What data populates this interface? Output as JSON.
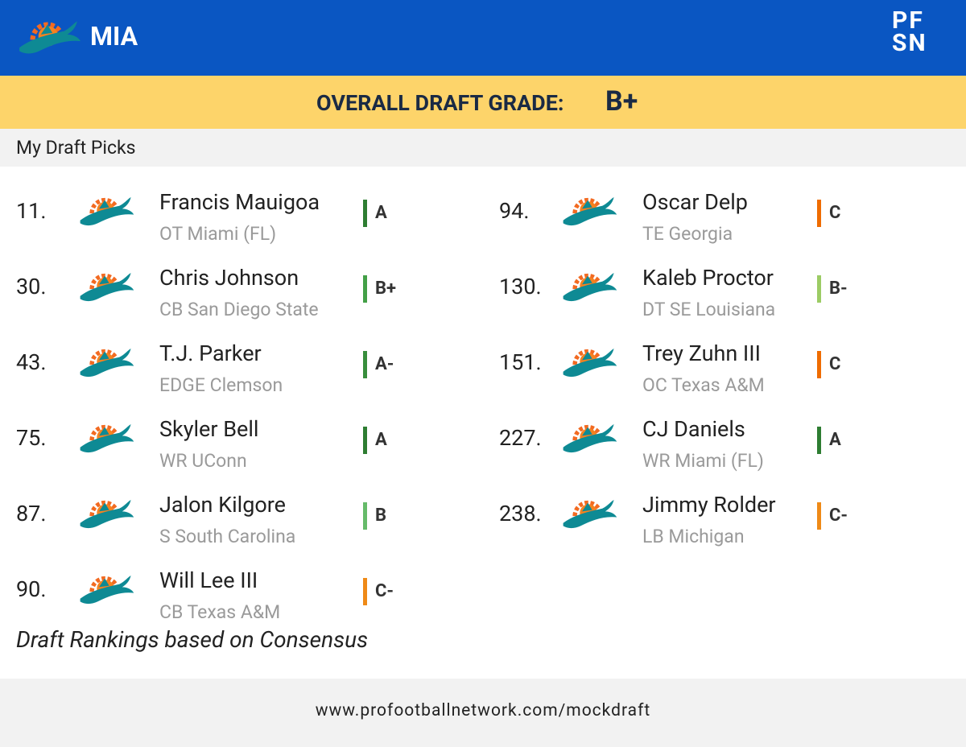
{
  "header": {
    "team": "MIA",
    "logo": [
      "PF",
      "SN"
    ]
  },
  "grade_banner": {
    "label": "OVERALL DRAFT GRADE:",
    "grade": "B+"
  },
  "section_title": "My Draft Picks",
  "picks": [
    {
      "pick": "11.",
      "name": "Francis Mauigoa",
      "position_school": "OT Miami (FL)",
      "grade": "A",
      "grade_color": "#2e7d32"
    },
    {
      "pick": "30.",
      "name": "Chris Johnson",
      "position_school": "CB San Diego State",
      "grade": "B+",
      "grade_color": "#43a047"
    },
    {
      "pick": "43.",
      "name": "T.J. Parker",
      "position_school": "EDGE Clemson",
      "grade": "A-",
      "grade_color": "#388e3c"
    },
    {
      "pick": "75.",
      "name": "Skyler Bell",
      "position_school": "WR UConn",
      "grade": "A",
      "grade_color": "#2e7d32"
    },
    {
      "pick": "87.",
      "name": "Jalon Kilgore",
      "position_school": "S South Carolina",
      "grade": "B",
      "grade_color": "#66bb6a"
    },
    {
      "pick": "90.",
      "name": "Will Lee III",
      "position_school": "CB Texas A&M",
      "grade": "C-",
      "grade_color": "#ef8a17"
    },
    {
      "pick": "94.",
      "name": "Oscar Delp",
      "position_school": "TE Georgia",
      "grade": "C",
      "grade_color": "#ef6c00"
    },
    {
      "pick": "130.",
      "name": "Kaleb Proctor",
      "position_school": "DT SE Louisiana",
      "grade": "B-",
      "grade_color": "#9ccc65"
    },
    {
      "pick": "151.",
      "name": "Trey Zuhn III",
      "position_school": "OC Texas A&M",
      "grade": "C",
      "grade_color": "#ef6c00"
    },
    {
      "pick": "227.",
      "name": "CJ Daniels",
      "position_school": "WR Miami (FL)",
      "grade": "A",
      "grade_color": "#2e7d32"
    },
    {
      "pick": "238.",
      "name": "Jimmy Rolder",
      "position_school": "LB Michigan",
      "grade": "C-",
      "grade_color": "#ef8a17"
    }
  ],
  "footnote": "Draft Rankings based on Consensus",
  "footer_url": "www.profootballnetwork.com/mockdraft"
}
